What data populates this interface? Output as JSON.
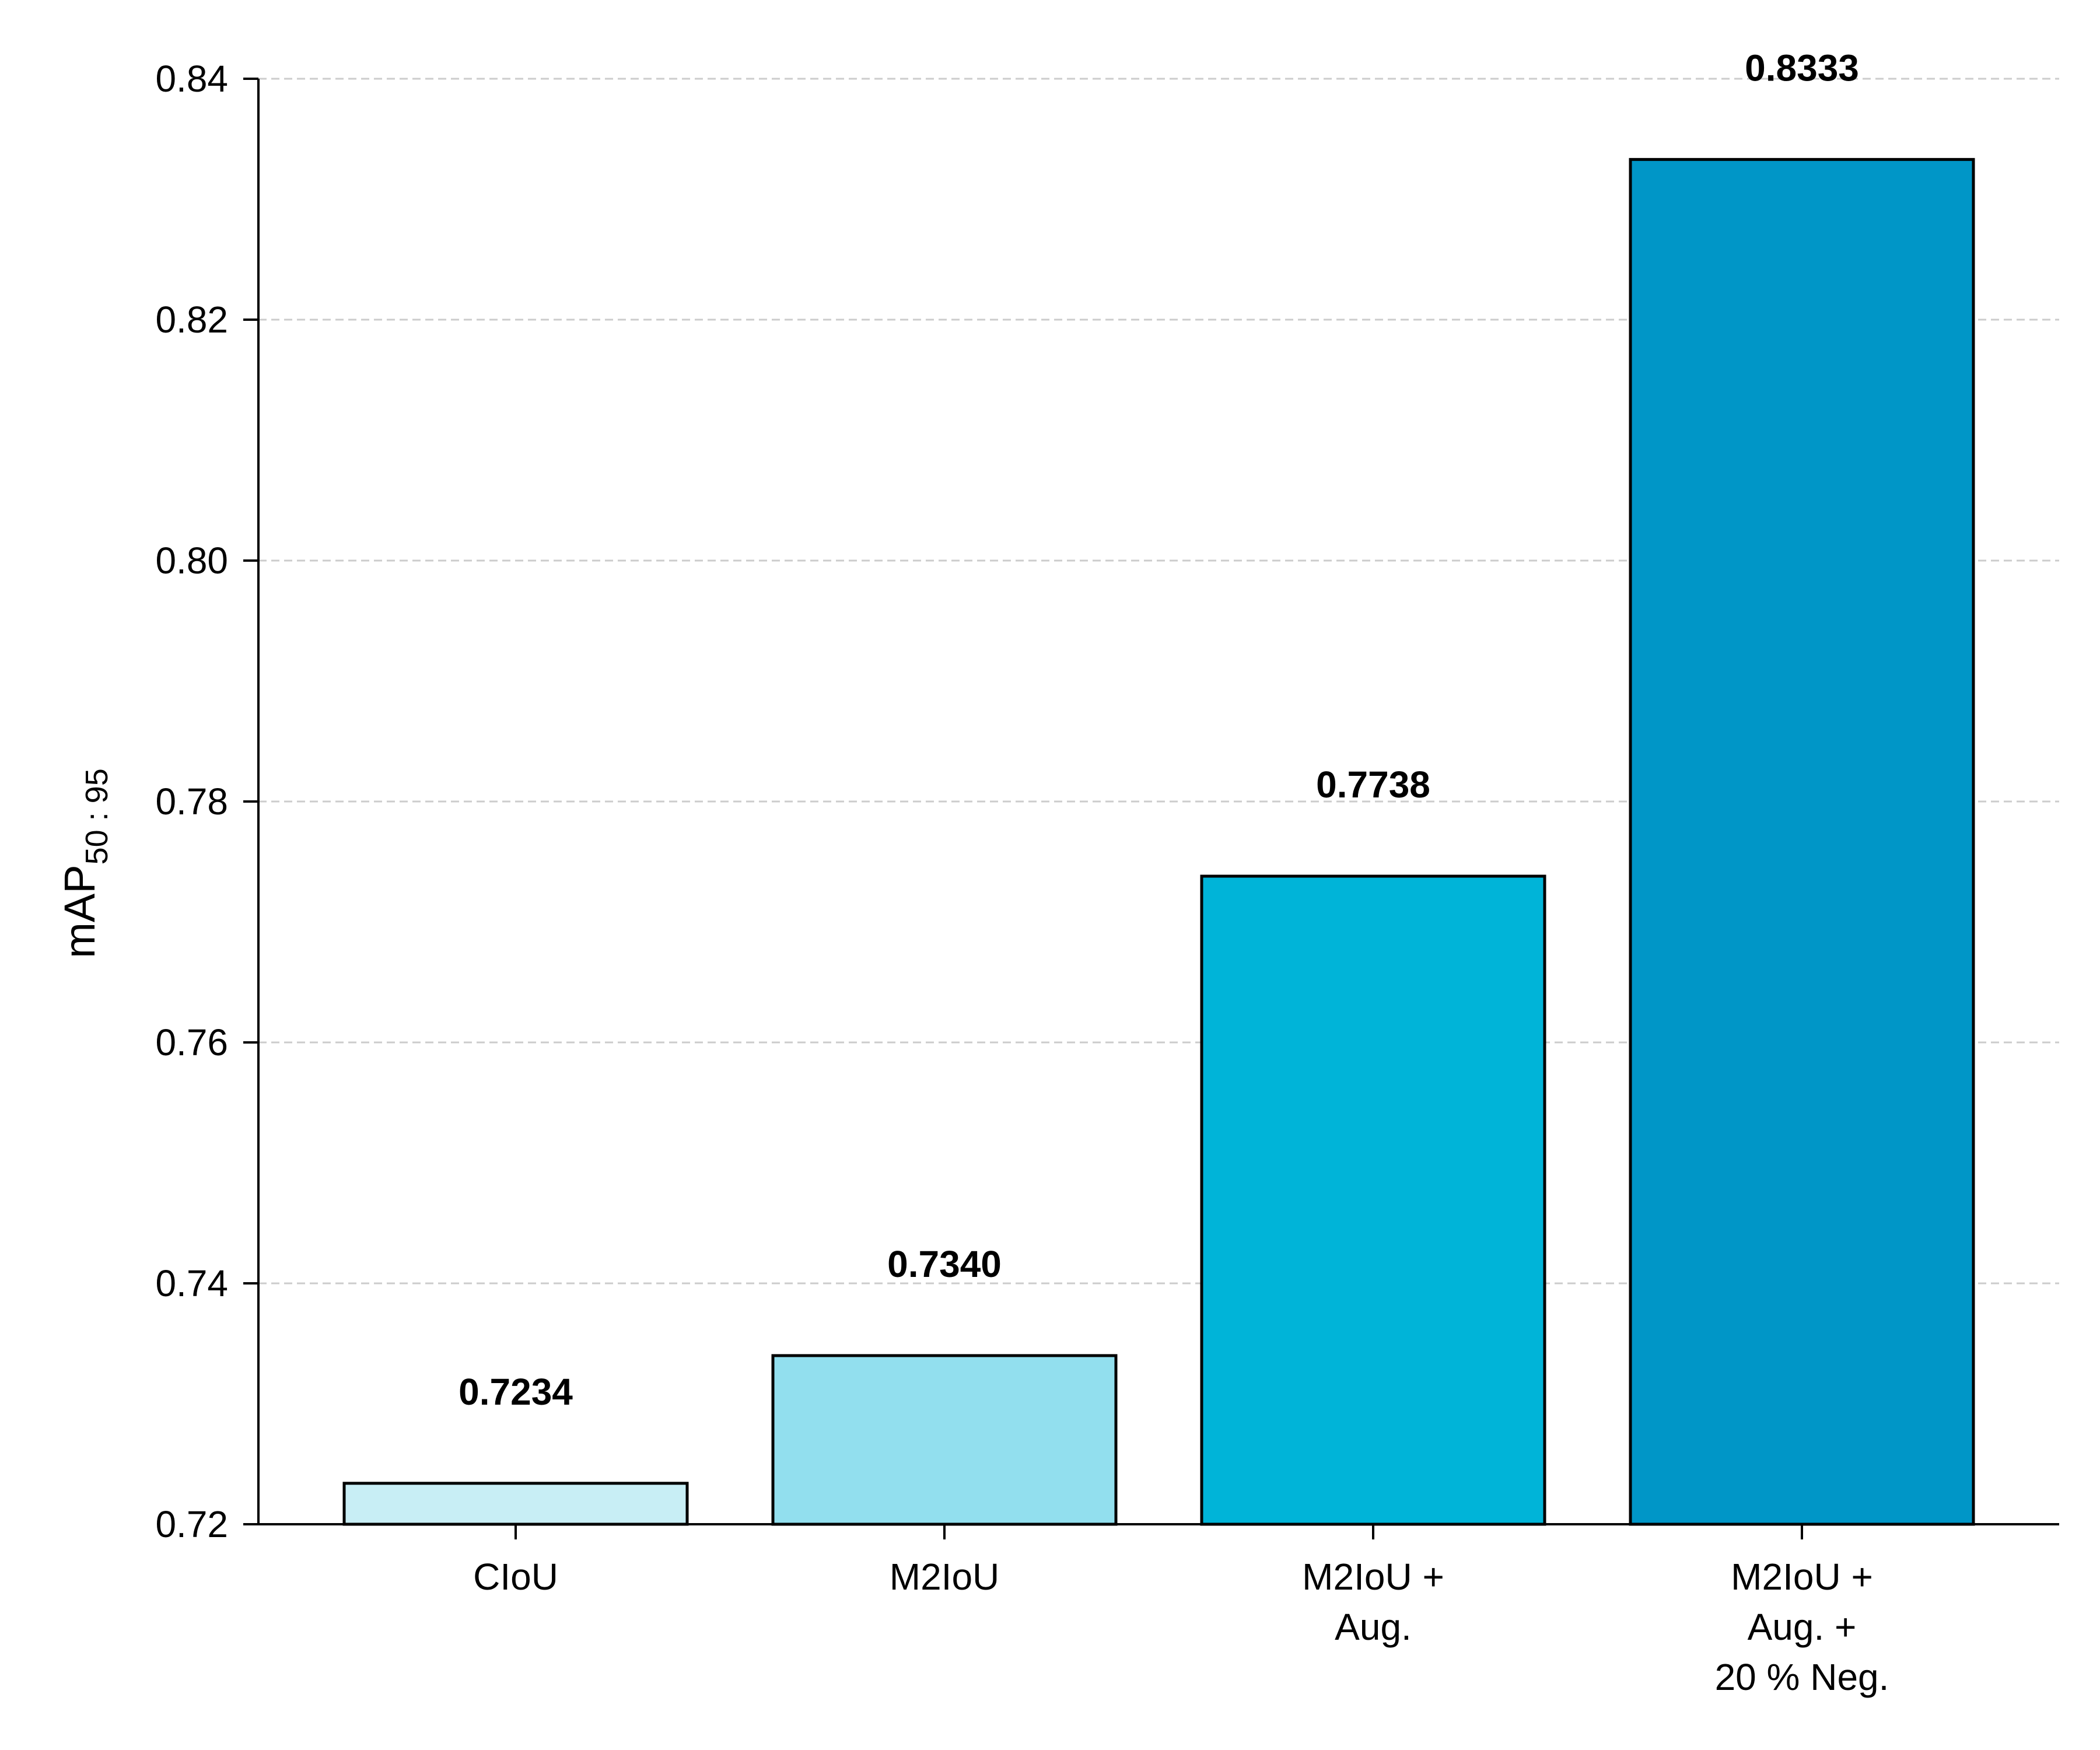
{
  "chart_data": {
    "type": "bar",
    "categories": [
      [
        "CIoU"
      ],
      [
        "M2IoU"
      ],
      [
        "M2IoU +",
        "Aug."
      ],
      [
        "M2IoU +",
        "Aug. +",
        "20 % Neg."
      ]
    ],
    "values": [
      0.7234,
      0.734,
      0.7738,
      0.8333
    ],
    "value_labels": [
      "0.7234",
      "0.7340",
      "0.7738",
      "0.8333"
    ],
    "colors": [
      "#c8eef5",
      "#92dfee",
      "#00b4d8",
      "#0096c7"
    ],
    "edge_color": "#000000",
    "ylabel": {
      "main": "mAP",
      "subscript": "50 : 95"
    },
    "ylim": [
      0.72,
      0.84
    ],
    "yticks": [
      0.72,
      0.74,
      0.76,
      0.78,
      0.8,
      0.82,
      0.84
    ],
    "ytick_labels": [
      "0.72",
      "0.74",
      "0.76",
      "0.78",
      "0.80",
      "0.82",
      "0.84"
    ],
    "grid": {
      "axis": "y",
      "style": "dashed",
      "color": "#cccccc"
    }
  }
}
